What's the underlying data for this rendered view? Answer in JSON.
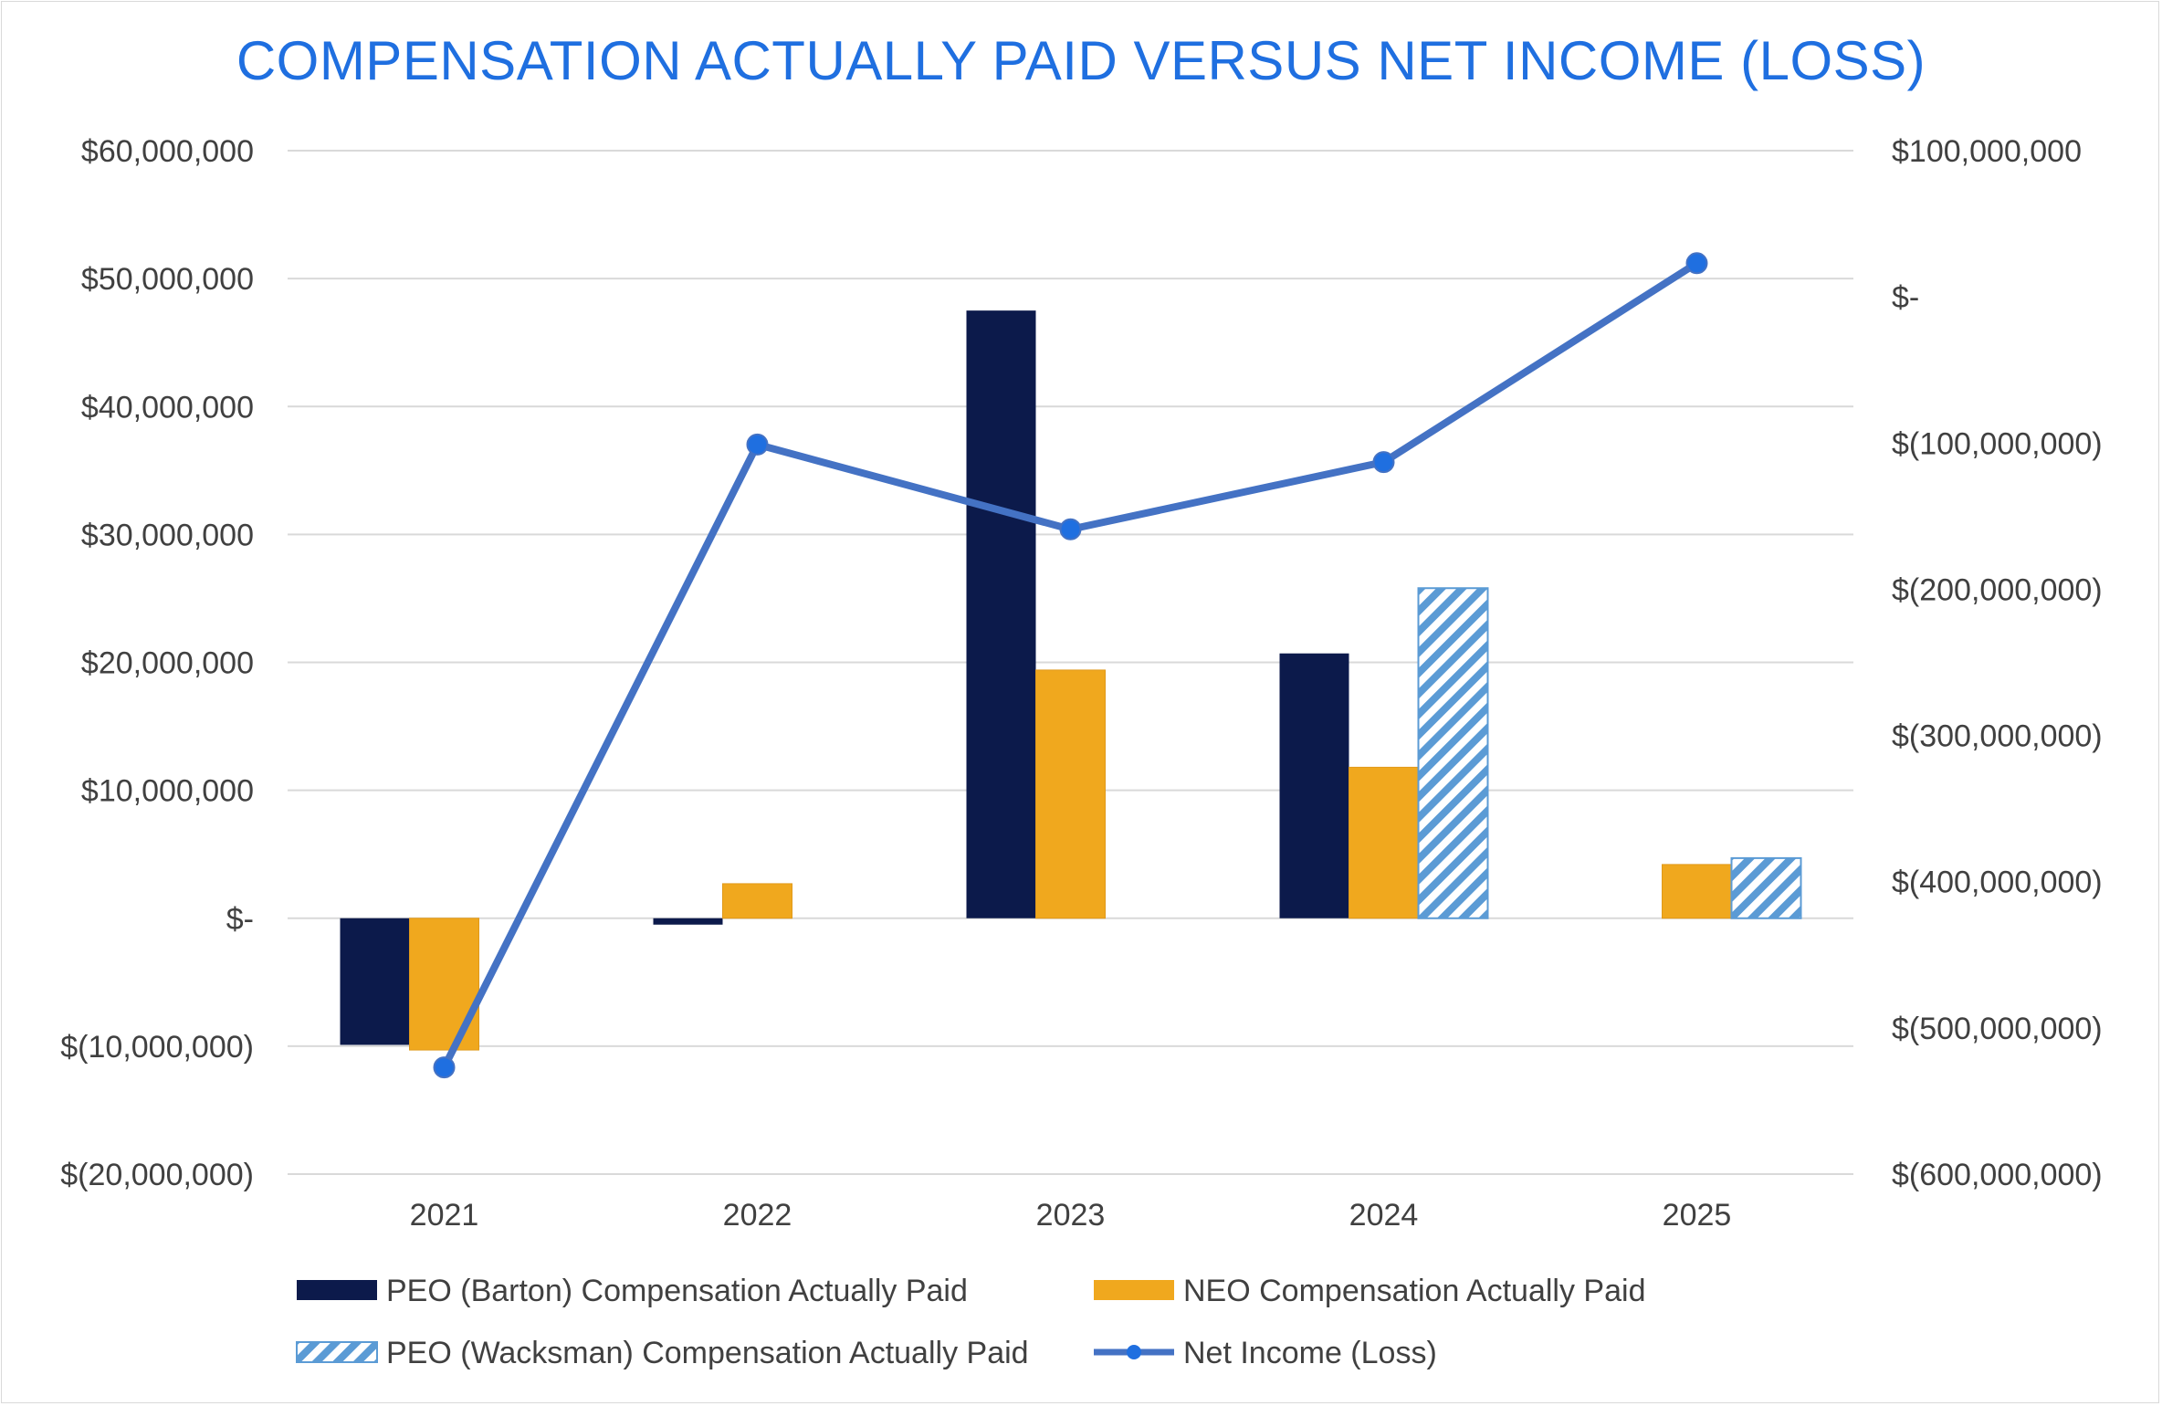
{
  "chart_data": {
    "type": "bar",
    "title": "COMPENSATION ACTUALLY PAID VERSUS NET INCOME (LOSS)",
    "categories": [
      "2021",
      "2022",
      "2023",
      "2024",
      "2025"
    ],
    "left_axis": {
      "ylim": [
        -20000000,
        60000000
      ],
      "step": 10000000,
      "tick_labels": [
        "$(20,000,000)",
        "$(10,000,000)",
        "$-",
        "$10,000,000",
        "$20,000,000",
        "$30,000,000",
        "$40,000,000",
        "$50,000,000",
        "$60,000,000"
      ]
    },
    "right_axis": {
      "ylim": [
        -600000000,
        100000000
      ],
      "step": 100000000,
      "tick_labels": [
        "$(600,000,000)",
        "$(500,000,000)",
        "$(400,000,000)",
        "$(300,000,000)",
        "$(200,000,000)",
        "$(100,000,000)",
        "$-",
        "$100,000,000"
      ]
    },
    "grid": true,
    "legend_position": "bottom",
    "series": [
      {
        "name": "PEO (Barton) Compensation Actually Paid",
        "kind": "bar",
        "axis": "left",
        "color": "#0c1a4b",
        "values": [
          -9900000,
          -500000,
          47500000,
          20700000,
          null
        ]
      },
      {
        "name": "NEO Compensation Actually Paid",
        "kind": "bar",
        "axis": "left",
        "color": "#f0a81e",
        "values": [
          -10300000,
          2700000,
          19400000,
          11800000,
          4200000
        ]
      },
      {
        "name": "PEO (Wacksman) Compensation Actually Paid",
        "kind": "bar",
        "axis": "left",
        "color": "#5b9bd5",
        "pattern": "hatched",
        "values": [
          null,
          null,
          null,
          25800000,
          4700000
        ]
      },
      {
        "name": "Net Income (Loss)",
        "kind": "line",
        "axis": "right",
        "color": "#4472c4",
        "marker_color": "#1f6fe0",
        "values": [
          -527000000,
          -101000000,
          -159000000,
          -113000000,
          23000000
        ]
      }
    ]
  }
}
